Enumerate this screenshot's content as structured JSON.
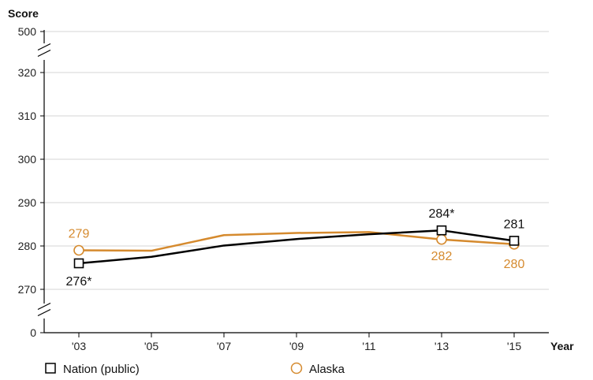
{
  "chart_data": {
    "type": "line",
    "ylabel": "Score",
    "xlabel": "Year",
    "x": [
      "'03",
      "'05",
      "'07",
      "'09",
      "'11",
      "'13",
      "'15"
    ],
    "y_ticks": [
      "0",
      "270",
      "280",
      "290",
      "300",
      "310",
      "320",
      "500"
    ],
    "y_axis_breaks": true,
    "grid": true,
    "series": [
      {
        "name": "Nation (public)",
        "color": "#000000",
        "marker": "square",
        "values": [
          276,
          277.5,
          280.1,
          281.6,
          282.7,
          283.6,
          281.2
        ],
        "labels": [
          "276*",
          "",
          "",
          "",
          "",
          "284*",
          "281"
        ]
      },
      {
        "name": "Alaska",
        "color": "#d58a2e",
        "marker": "circle",
        "values": [
          279,
          278.9,
          282.5,
          283,
          283.2,
          281.5,
          280.4
        ],
        "labels": [
          "279",
          "",
          "",
          "",
          "",
          "282",
          "280"
        ]
      }
    ],
    "marked_points": [
      0,
      5,
      6
    ],
    "legend_position": "bottom"
  }
}
